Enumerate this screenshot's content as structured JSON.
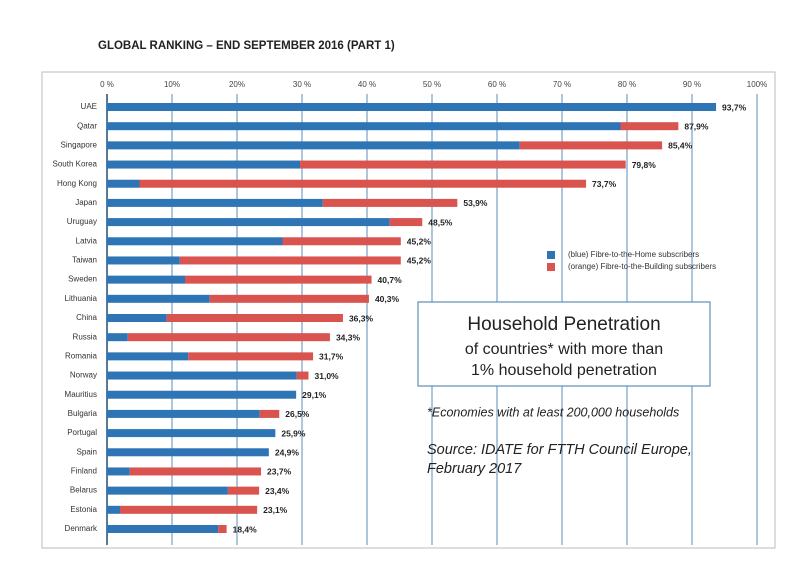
{
  "chart_data": {
    "type": "stacked-bar-horizontal",
    "title": "GLOBAL RANKING – END SEPTEMBER 2016 (PART 1)",
    "categories": [
      "UAE",
      "Qatar",
      "Singapore",
      "South Korea",
      "Hong Kong",
      "Japan",
      "Uruguay",
      "Latvia",
      "Taiwan",
      "Sweden",
      "Lithuania",
      "China",
      "Russia",
      "Romania",
      "Norway",
      "Mauritius",
      "Bulgaria",
      "Portugal",
      "Spain",
      "Finland",
      "Belarus",
      "Estonia",
      "Denmark"
    ],
    "series": [
      {
        "name": "(blue) Fibre-to-the-Home subscribers",
        "color": "#2e75b6",
        "values": [
          93.7,
          79,
          63.5,
          29.7,
          5,
          33.2,
          43.5,
          27,
          11.2,
          12,
          15.8,
          9.2,
          3.2,
          12.5,
          29.2,
          29.1,
          23.5,
          25.9,
          24.9,
          3.5,
          18.6,
          2,
          17.1
        ]
      },
      {
        "name": "(orange) Fibre-to-the-Building subscribers",
        "color": "#d9534f",
        "values": [
          0,
          8.9,
          21.9,
          50.1,
          68.7,
          20.7,
          5,
          18.2,
          34,
          28.7,
          24.5,
          27.1,
          31.1,
          19.2,
          1.8,
          0,
          3,
          0,
          0,
          20.2,
          4.8,
          21.1,
          1.3
        ]
      }
    ],
    "totals": {
      "values": [
        93.7,
        87.9,
        85.4,
        79.8,
        73.7,
        53.9,
        48.5,
        45.2,
        45.2,
        40.7,
        40.3,
        36.3,
        34.3,
        31.7,
        31.0,
        29.1,
        26.5,
        25.9,
        24.9,
        23.7,
        23.4,
        23.1,
        18.4
      ],
      "value_labels": [
        "93,7%",
        "87,9%",
        "85,4%",
        "79,8%",
        "73,7%",
        "53,9%",
        "48,5%",
        "45,2%",
        "45,2%",
        "40,7%",
        "40,3%",
        "36,3%",
        "34,3%",
        "31,7%",
        "31,0%",
        "29,1%",
        "26,5%",
        "25,9%",
        "24,9%",
        "23,7%",
        "23,4%",
        "23,1%",
        "18,4%"
      ]
    },
    "xlim": [
      0,
      100
    ],
    "xticks": [
      {
        "value": 0,
        "label": "0 %"
      },
      {
        "value": 10,
        "label": "10%"
      },
      {
        "value": 20,
        "label": "20%"
      },
      {
        "value": 30,
        "label": "30 %"
      },
      {
        "value": 40,
        "label": "40 %"
      },
      {
        "value": 50,
        "label": "50 %"
      },
      {
        "value": 60,
        "label": "60 %"
      },
      {
        "value": 70,
        "label": "70 %"
      },
      {
        "value": 80,
        "label": "80 %"
      },
      {
        "value": 90,
        "label": "90 %"
      },
      {
        "value": 100,
        "label": "100%"
      }
    ],
    "grid": true,
    "legend": "right",
    "annotation": {
      "heading": "Household Penetration",
      "lines": [
        "of countries* with more than",
        "1% household penetration"
      ],
      "footnote": "*Economies with at least 200,000 households",
      "source": [
        "Source: IDATE for FTTH Council Europe,",
        "February 2017"
      ]
    }
  }
}
